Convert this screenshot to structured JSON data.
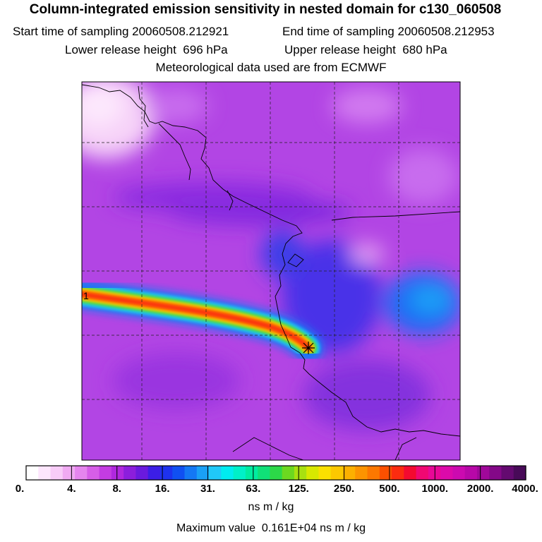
{
  "figure": {
    "title": "Column-integrated emission sensitivity in nested domain for c130_060508",
    "start_label": "Start time of sampling",
    "start_value": "20060508.212921",
    "end_label": "End time of sampling",
    "end_value": "20060508.212953",
    "lower_label": "Lower release height",
    "lower_value": "696 hPa",
    "upper_label": "Upper release height",
    "upper_value": "680 hPa",
    "met_line": "Meteorological data used are from ECMWF",
    "plume_start_marker": "1"
  },
  "colorbar": {
    "labels": [
      "0.",
      "4.",
      "8.",
      "16.",
      "31.",
      "63.",
      "125.",
      "250.",
      "500.",
      "1000.",
      "2000.",
      "4000."
    ],
    "colors": [
      "#ffffff",
      "#fde6fd",
      "#f8ccf8",
      "#f0aaf2",
      "#e585ee",
      "#d65ee8",
      "#c43ce2",
      "#b028de",
      "#8c1edc",
      "#6a1ade",
      "#3c1ee6",
      "#1e32ee",
      "#1050f2",
      "#1478f4",
      "#1aa0f6",
      "#20c8f8",
      "#00ecf0",
      "#00f0c8",
      "#00eca0",
      "#10e078",
      "#2cd848",
      "#6cd820",
      "#a8e010",
      "#d8e800",
      "#fae000",
      "#fcc800",
      "#fcb000",
      "#fc9400",
      "#fc7800",
      "#fc5000",
      "#fc2c10",
      "#f40a30",
      "#f00872",
      "#e80896",
      "#dc0aaa",
      "#cc0ab0",
      "#b808a8",
      "#a0089a",
      "#840888",
      "#640a70",
      "#480a58"
    ],
    "units": "ns m / kg"
  },
  "max_label": "Maximum value",
  "max_value": "0.161E+04 ns m / kg",
  "colors": {
    "background_field": "#b245e4",
    "trough": "#6a22dc",
    "blue_low": "#2050f0",
    "plume_core": "#ff2a00"
  }
}
